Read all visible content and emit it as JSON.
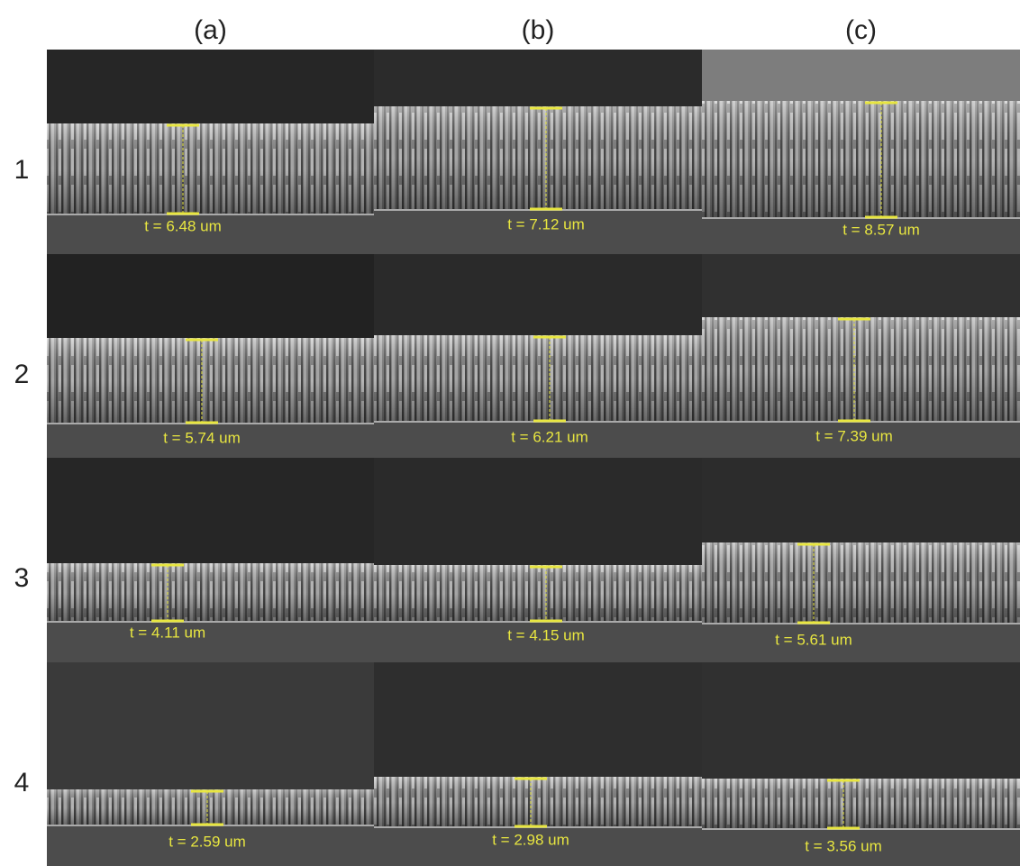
{
  "column_labels": [
    "(a)",
    "(b)",
    "(c)"
  ],
  "row_labels": [
    "1",
    "2",
    "3",
    "4"
  ],
  "panels": [
    [
      "t = 6.48 um",
      "t = 7.12 um",
      "t = 8.57 um"
    ],
    [
      "t = 5.74 um",
      "t = 6.21 um",
      "t = 7.39 um"
    ],
    [
      "t = 4.11 um",
      "t = 4.15 um",
      "t = 5.61 um"
    ],
    [
      "t = 2.59 um",
      "t = 2.98 um",
      "t = 3.56 um"
    ]
  ]
}
